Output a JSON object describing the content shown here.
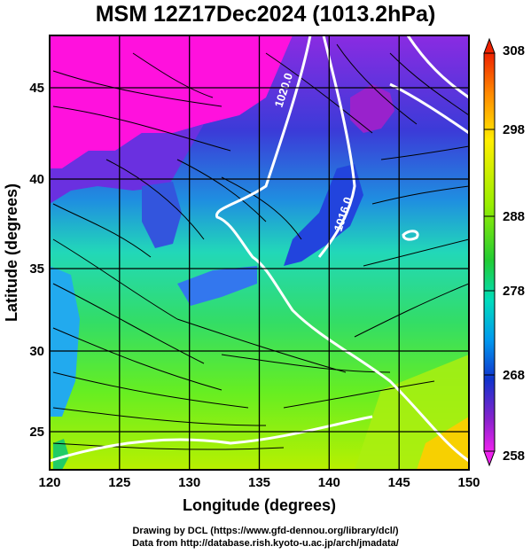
{
  "title": "MSM 12Z17Dec2024 (1013.2hPa)",
  "axes": {
    "xlabel": "Longitude (degrees)",
    "ylabel": "Latitude  (degrees)",
    "xticks": [
      "120",
      "125",
      "130",
      "135",
      "140",
      "145",
      "150"
    ],
    "yticks": [
      "25",
      "30",
      "35",
      "40",
      "45"
    ]
  },
  "map_data": {
    "lon_range": [
      120,
      150
    ],
    "lat_range": [
      22.4,
      47.6
    ],
    "field": "temperature (K)",
    "contour_labels": [
      "1020.0",
      "1016.0"
    ],
    "colors": {
      "cold": "#ff00ff",
      "cool": "#0000cc",
      "mid": "#00e0c0",
      "warm": "#00e000",
      "hot": "#ffff00",
      "max": "#ff6600"
    }
  },
  "colorbar": {
    "ticks": [
      "308",
      "298",
      "288",
      "278",
      "268",
      "258"
    ]
  },
  "credits": {
    "line1": "Drawing by DCL (https://www.gfd-dennou.org/library/dcl/)",
    "line2": "Data from http://database.rish.kyoto-u.ac.jp/arch/jmadata/"
  }
}
